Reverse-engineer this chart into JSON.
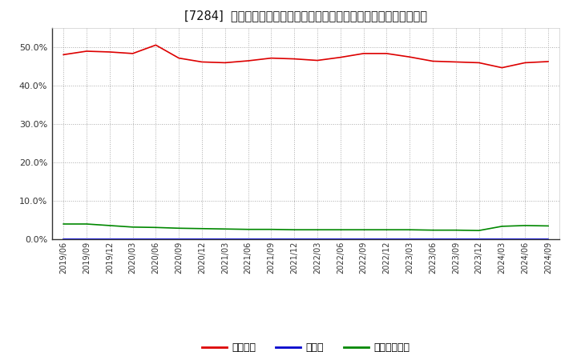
{
  "title": "[7284]  自己資本、のれん、繰延税金資産の総資産に対する比率の推移",
  "x_labels": [
    "2019/06",
    "2019/09",
    "2019/12",
    "2020/03",
    "2020/06",
    "2020/09",
    "2020/12",
    "2021/03",
    "2021/06",
    "2021/09",
    "2021/12",
    "2022/03",
    "2022/06",
    "2022/09",
    "2022/12",
    "2023/03",
    "2023/06",
    "2023/09",
    "2023/12",
    "2024/03",
    "2024/06",
    "2024/09"
  ],
  "equity": [
    48.1,
    49.0,
    48.8,
    48.4,
    50.6,
    47.2,
    46.2,
    46.0,
    46.5,
    47.2,
    47.0,
    46.6,
    47.4,
    48.4,
    48.4,
    47.5,
    46.4,
    46.2,
    46.0,
    44.7,
    46.0,
    46.3
  ],
  "noren": [
    0.0,
    0.0,
    0.0,
    0.0,
    0.0,
    0.0,
    0.0,
    0.0,
    0.0,
    0.0,
    0.0,
    0.0,
    0.0,
    0.0,
    0.0,
    0.0,
    0.0,
    0.0,
    0.0,
    0.0,
    0.0,
    0.0
  ],
  "deferred_tax": [
    4.0,
    4.0,
    3.6,
    3.2,
    3.1,
    2.9,
    2.8,
    2.7,
    2.6,
    2.6,
    2.5,
    2.5,
    2.5,
    2.5,
    2.5,
    2.5,
    2.4,
    2.4,
    2.3,
    3.4,
    3.6,
    3.5
  ],
  "equity_color": "#dd0000",
  "noren_color": "#0000cc",
  "deferred_tax_color": "#008800",
  "background_color": "#ffffff",
  "plot_bg_color": "#ffffff",
  "grid_color": "#aaaaaa",
  "ylim": [
    0,
    55
  ],
  "yticks": [
    0.0,
    10.0,
    20.0,
    30.0,
    40.0,
    50.0
  ],
  "legend_labels": [
    "自己資本",
    "のれん",
    "繰延税金資産"
  ]
}
